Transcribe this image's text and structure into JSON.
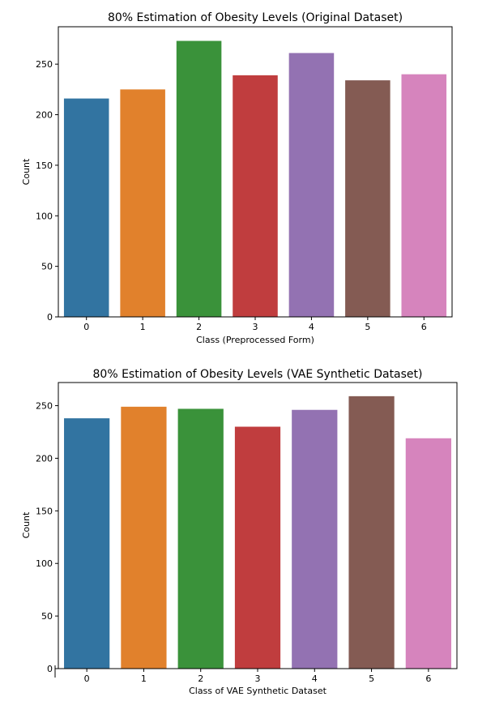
{
  "colors": [
    "#3274a1",
    "#e1812c",
    "#3a923a",
    "#c03d3e",
    "#9372b2",
    "#845b53",
    "#d684bd"
  ],
  "chart_data": [
    {
      "type": "bar",
      "title": "80% Estimation of Obesity Levels (Original Dataset)",
      "xlabel": "Class (Preprocessed Form)",
      "ylabel": "Count",
      "categories": [
        "0",
        "1",
        "2",
        "3",
        "4",
        "5",
        "6"
      ],
      "values": [
        216,
        225,
        273,
        239,
        261,
        234,
        240
      ],
      "ylim": [
        0,
        287
      ],
      "yticks": [
        0,
        50,
        100,
        150,
        200,
        250
      ],
      "grid": false
    },
    {
      "type": "bar",
      "title": "80% Estimation of Obesity Levels (VAE Synthetic Dataset)",
      "xlabel": "Class of VAE Synthetic Dataset",
      "ylabel": "Count",
      "categories": [
        "0",
        "1",
        "2",
        "3",
        "4",
        "5",
        "6"
      ],
      "values": [
        238,
        249,
        247,
        230,
        246,
        259,
        219
      ],
      "ylim": [
        0,
        272
      ],
      "yticks": [
        0,
        50,
        100,
        150,
        200,
        250
      ],
      "grid": false
    }
  ]
}
